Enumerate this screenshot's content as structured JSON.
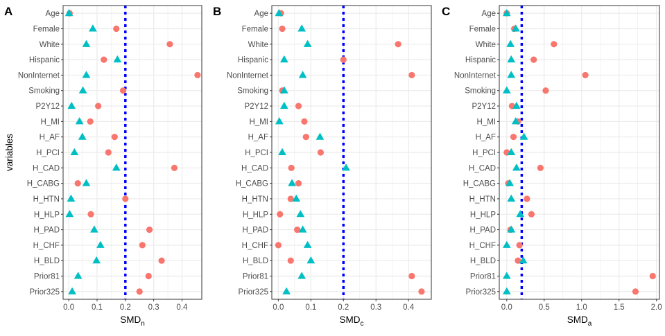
{
  "colors": {
    "triangle": "#00BFC4",
    "circle": "#F8766D",
    "threshold": "#0000FF",
    "grid": "#EBEBEB",
    "border": "#333333"
  },
  "ylabel": "variables",
  "chart_data": [
    {
      "type": "scatter",
      "panel": "A",
      "xlabel_main": "SMD",
      "xlabel_sub": "n",
      "ylabel": "variables",
      "xlim": [
        -0.02,
        0.47
      ],
      "xticks": [
        0.0,
        0.1,
        0.2,
        0.3,
        0.4
      ],
      "xtick_labels": [
        "0.0",
        "0.1",
        "0.2",
        "0.3",
        "0.4"
      ],
      "threshold": 0.2,
      "categories": [
        "Age",
        "Female",
        "White",
        "Hispanic",
        "NonInternet",
        "Smoking",
        "P2Y12",
        "H_MI",
        "H_AF",
        "H_PCI",
        "H_CAD",
        "H_CABG",
        "H_HTN",
        "H_HLP",
        "H_PAD",
        "H_CHF",
        "H_BLD",
        "Prior81",
        "Prior325"
      ],
      "series": [
        {
          "name": "circle",
          "marker": "circle",
          "values": [
            0.003,
            0.168,
            0.357,
            0.124,
            0.455,
            0.192,
            0.104,
            0.076,
            0.162,
            0.14,
            0.373,
            0.032,
            0.2,
            0.078,
            0.285,
            0.26,
            0.328,
            0.282,
            0.25
          ]
        },
        {
          "name": "triangle",
          "marker": "triangle",
          "values": [
            0.001,
            0.085,
            0.062,
            0.172,
            0.062,
            0.05,
            0.01,
            0.038,
            0.048,
            0.02,
            0.168,
            0.062,
            0.008,
            0.003,
            0.09,
            0.112,
            0.098,
            0.033,
            0.012
          ]
        }
      ]
    },
    {
      "type": "scatter",
      "panel": "B",
      "xlabel_main": "SMD",
      "xlabel_sub": "c",
      "ylabel": "",
      "xlim": [
        -0.02,
        0.47
      ],
      "xticks": [
        0.0,
        0.1,
        0.2,
        0.3,
        0.4
      ],
      "xtick_labels": [
        "0.0",
        "0.1",
        "0.2",
        "0.3",
        "0.4"
      ],
      "threshold": 0.2,
      "categories": [
        "Age",
        "Female",
        "White",
        "Hispanic",
        "NonInternet",
        "Smoking",
        "P2Y12",
        "H_MI",
        "H_AF",
        "H_PCI",
        "H_CAD",
        "H_CABG",
        "H_HTN",
        "H_HLP",
        "H_PAD",
        "H_CHF",
        "H_BLD",
        "Prior81",
        "Prior325"
      ],
      "series": [
        {
          "name": "circle",
          "marker": "circle",
          "values": [
            0.008,
            0.012,
            0.368,
            0.2,
            0.41,
            0.012,
            0.062,
            0.08,
            0.085,
            0.13,
            0.04,
            0.062,
            0.038,
            0.005,
            0.058,
            0.0,
            0.038,
            0.41,
            0.44
          ]
        },
        {
          "name": "triangle",
          "marker": "triangle",
          "values": [
            0.002,
            0.072,
            0.09,
            0.018,
            0.075,
            0.018,
            0.018,
            0.003,
            0.128,
            0.012,
            0.208,
            0.042,
            0.055,
            0.068,
            0.075,
            0.09,
            0.1,
            0.072,
            0.025
          ]
        }
      ]
    },
    {
      "type": "scatter",
      "panel": "C",
      "xlabel_main": "SMD",
      "xlabel_sub": "a",
      "ylabel": "",
      "xlim": [
        -0.1,
        2.04
      ],
      "xticks": [
        0.0,
        0.5,
        1.0,
        1.5,
        2.0
      ],
      "xtick_labels": [
        "0.0",
        "0.5",
        "1.0",
        "1.5",
        "2.0"
      ],
      "threshold": 0.2,
      "categories": [
        "Age",
        "Female",
        "White",
        "Hispanic",
        "NonInternet",
        "Smoking",
        "P2Y12",
        "H_MI",
        "H_AF",
        "H_PCI",
        "H_CAD",
        "H_CABG",
        "H_HTN",
        "H_HLP",
        "H_PAD",
        "H_CHF",
        "H_BLD",
        "Prior81",
        "Prior325"
      ],
      "series": [
        {
          "name": "circle",
          "marker": "circle",
          "values": [
            0.0,
            0.1,
            0.63,
            0.36,
            1.05,
            0.52,
            0.07,
            0.15,
            0.09,
            0.0,
            0.45,
            0.02,
            0.27,
            0.33,
            0.05,
            0.17,
            0.15,
            1.95,
            1.72
          ]
        },
        {
          "name": "triangle",
          "marker": "triangle",
          "values": [
            0.0,
            0.12,
            0.05,
            0.06,
            0.06,
            0.0,
            0.13,
            0.12,
            0.23,
            0.06,
            0.13,
            0.04,
            0.06,
            0.18,
            0.06,
            0.0,
            0.22,
            0.0,
            0.0
          ]
        }
      ]
    }
  ]
}
